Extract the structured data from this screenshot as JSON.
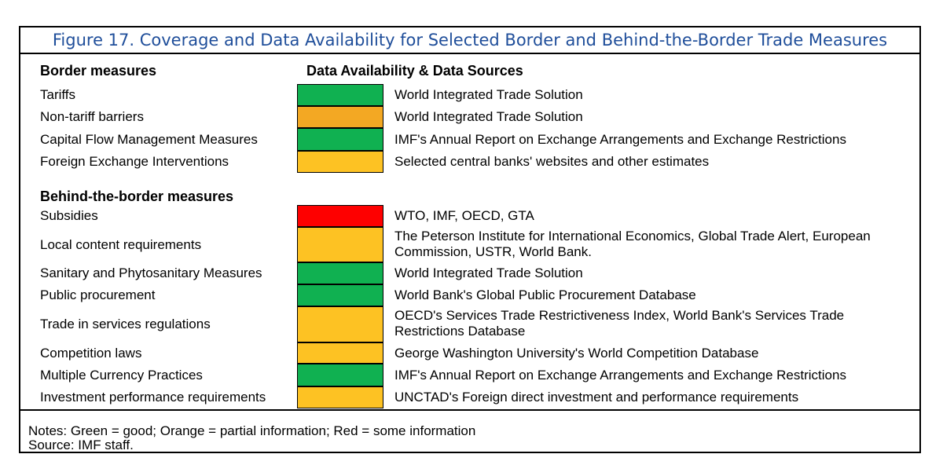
{
  "title": "Figure 17. Coverage and Data Availability for Selected Border and Behind-the-Border Trade Measures",
  "headers": {
    "border": "Border measures",
    "availability": "Data Availability & Data Sources",
    "behind": "Behind-the-border measures"
  },
  "colors": {
    "green": "#10b151",
    "orange": "#f3a823",
    "yellow": "#fdc223",
    "red": "#fe0000",
    "title_blue": "#1f4e9a"
  },
  "border_rows": [
    {
      "label": "Tariffs",
      "status": "green",
      "source": "World Integrated Trade Solution"
    },
    {
      "label": "Non-tariff barriers",
      "status": "orange",
      "source": "World Integrated Trade Solution"
    },
    {
      "label": "Capital Flow Management Measures",
      "status": "green",
      "source": "IMF's Annual Report on Exchange Arrangements and Exchange Restrictions"
    },
    {
      "label": "Foreign Exchange Interventions",
      "status": "yellow",
      "source": "Selected central banks' websites and other estimates"
    }
  ],
  "behind_rows": [
    {
      "label": "Subsidies",
      "status": "red",
      "source": "WTO, IMF, OECD, GTA"
    },
    {
      "label": "Local content requirements",
      "status": "yellow",
      "source": "The Peterson Institute for International Economics, Global Trade Alert, European Commission, USTR, World Bank."
    },
    {
      "label": "Sanitary and Phytosanitary Measures",
      "status": "green",
      "source": "World Integrated Trade Solution"
    },
    {
      "label": "Public procurement",
      "status": "green",
      "source": "World Bank's Global Public Procurement Database"
    },
    {
      "label": "Trade in services regulations",
      "status": "yellow",
      "source": "OECD's Services Trade Restrictiveness Index, World Bank's Services Trade Restrictions Database"
    },
    {
      "label": "Competition laws",
      "status": "yellow",
      "source": "George Washington University's World Competition Database"
    },
    {
      "label": "Multiple Currency Practices",
      "status": "green",
      "source": "IMF's Annual Report on Exchange Arrangements and Exchange Restrictions"
    },
    {
      "label": "Investment performance requirements",
      "status": "yellow",
      "source": "UNCTAD's Foreign direct investment and performance requirements"
    }
  ],
  "notes": "Notes: Green = good; Orange = partial information; Red = some information",
  "source": "Source: IMF staff."
}
